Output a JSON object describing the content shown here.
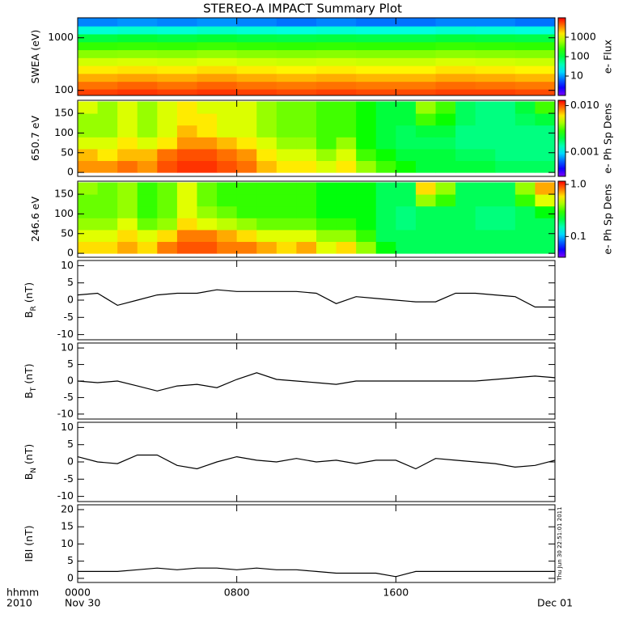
{
  "chart_data": [
    {
      "type": "heatmap",
      "title": "STEREO-A IMPACT Summary Plot",
      "ylabel": "SWEA (eV)",
      "ylog": true,
      "ylim": [
        80,
        2400
      ],
      "yticks": [
        100,
        1000
      ],
      "x": [
        1,
        3,
        5,
        7,
        9,
        11,
        13,
        15,
        17,
        19,
        21,
        23
      ],
      "y": [
        90,
        125,
        175,
        250,
        350,
        500,
        700,
        1000,
        1400,
        2000
      ],
      "z": [
        [
          6000,
          6500,
          6000,
          6500,
          6000,
          5500,
          6000,
          5500,
          5500,
          6000,
          6000,
          5500
        ],
        [
          4000,
          4500,
          4000,
          4500,
          4000,
          3800,
          4000,
          3800,
          3800,
          4200,
          4000,
          3800
        ],
        [
          2500,
          2700,
          2500,
          2800,
          2500,
          2300,
          2500,
          2300,
          2300,
          2600,
          2500,
          2300
        ],
        [
          1500,
          1600,
          1500,
          1700,
          1500,
          1400,
          1500,
          1400,
          1400,
          1600,
          1500,
          1400
        ],
        [
          900,
          950,
          900,
          1000,
          900,
          850,
          900,
          850,
          850,
          950,
          900,
          850
        ],
        [
          500,
          520,
          500,
          550,
          500,
          480,
          500,
          480,
          480,
          520,
          500,
          480
        ],
        [
          250,
          260,
          250,
          270,
          250,
          240,
          250,
          240,
          240,
          260,
          250,
          240
        ],
        [
          100,
          110,
          100,
          110,
          100,
          95,
          100,
          95,
          95,
          105,
          100,
          95
        ],
        [
          30,
          32,
          30,
          33,
          30,
          28,
          30,
          28,
          28,
          31,
          30,
          28
        ],
        [
          8,
          9,
          8,
          9,
          8,
          7,
          8,
          7,
          7,
          8,
          8,
          7
        ]
      ],
      "colorbar": {
        "label": "e- Flux",
        "log": true,
        "lim": [
          1,
          10000
        ],
        "ticks": [
          10,
          100,
          1000
        ]
      }
    },
    {
      "type": "heatmap",
      "ylabel": "650.7 eV",
      "ylim": [
        -10,
        183
      ],
      "yticks": [
        0,
        50,
        100,
        150
      ],
      "x": [
        0.5,
        1.5,
        2.5,
        3.5,
        4.5,
        5.5,
        6.5,
        7.5,
        8.5,
        9.5,
        10.5,
        11.5,
        12.5,
        13.5,
        14.5,
        15.5,
        16.5,
        17.5,
        18.5,
        19.5,
        20.5,
        21.5,
        22.5,
        23.5
      ],
      "y": [
        15,
        45,
        75,
        105,
        135,
        165
      ],
      "z": [
        [
          0.008,
          0.008,
          0.009,
          0.008,
          0.01,
          0.011,
          0.011,
          0.01,
          0.009,
          0.007,
          0.006,
          0.006,
          0.005,
          0.006,
          0.004,
          0.003,
          0.0025,
          0.002,
          0.002,
          0.002,
          0.002,
          0.0018,
          0.0018,
          0.0018
        ],
        [
          0.007,
          0.006,
          0.007,
          0.007,
          0.009,
          0.01,
          0.01,
          0.009,
          0.008,
          0.006,
          0.005,
          0.005,
          0.004,
          0.005,
          0.003,
          0.0025,
          0.002,
          0.002,
          0.002,
          0.0018,
          0.0018,
          0.0016,
          0.0016,
          0.0016
        ],
        [
          0.005,
          0.005,
          0.006,
          0.005,
          0.006,
          0.008,
          0.008,
          0.007,
          0.006,
          0.005,
          0.004,
          0.004,
          0.003,
          0.004,
          0.0025,
          0.002,
          0.0018,
          0.0018,
          0.0018,
          0.0016,
          0.0016,
          0.0016,
          0.0016,
          0.0016
        ],
        [
          0.004,
          0.004,
          0.005,
          0.004,
          0.005,
          0.007,
          0.006,
          0.005,
          0.005,
          0.004,
          0.0035,
          0.0035,
          0.003,
          0.003,
          0.0025,
          0.002,
          0.0018,
          0.002,
          0.002,
          0.0016,
          0.0016,
          0.0016,
          0.0016,
          0.0016
        ],
        [
          0.004,
          0.004,
          0.005,
          0.004,
          0.005,
          0.006,
          0.006,
          0.005,
          0.005,
          0.004,
          0.0035,
          0.0035,
          0.003,
          0.003,
          0.0025,
          0.002,
          0.002,
          0.003,
          0.0025,
          0.0018,
          0.0016,
          0.0016,
          0.0018,
          0.002
        ],
        [
          0.005,
          0.004,
          0.005,
          0.004,
          0.005,
          0.006,
          0.005,
          0.005,
          0.005,
          0.004,
          0.0035,
          0.0035,
          0.003,
          0.003,
          0.0025,
          0.002,
          0.002,
          0.004,
          0.003,
          0.0018,
          0.0016,
          0.0016,
          0.002,
          0.003
        ]
      ],
      "colorbar": {
        "label": "e- Ph Sp Dens",
        "log": true,
        "lim": [
          0.0003,
          0.013
        ],
        "ticks": [
          {
            "value": 0.01,
            "label": "0.010"
          },
          0.001
        ]
      }
    },
    {
      "type": "heatmap",
      "ylabel": "246.6 eV",
      "ylim": [
        -10,
        183
      ],
      "yticks": [
        0,
        50,
        100,
        150
      ],
      "x": [
        0.5,
        1.5,
        2.5,
        3.5,
        4.5,
        5.5,
        6.5,
        7.5,
        8.5,
        9.5,
        10.5,
        11.5,
        12.5,
        13.5,
        14.5,
        15.5,
        16.5,
        17.5,
        18.5,
        19.5,
        20.5,
        21.5,
        22.5,
        23.5
      ],
      "y": [
        15,
        45,
        75,
        105,
        135,
        165
      ],
      "z": [
        [
          0.6,
          0.6,
          0.7,
          0.6,
          0.8,
          0.9,
          0.9,
          0.8,
          0.8,
          0.7,
          0.6,
          0.7,
          0.5,
          0.6,
          0.4,
          0.25,
          0.2,
          0.2,
          0.2,
          0.2,
          0.2,
          0.2,
          0.2,
          0.2
        ],
        [
          0.5,
          0.5,
          0.6,
          0.5,
          0.6,
          0.8,
          0.8,
          0.7,
          0.6,
          0.5,
          0.5,
          0.5,
          0.4,
          0.4,
          0.3,
          0.2,
          0.2,
          0.2,
          0.2,
          0.2,
          0.2,
          0.2,
          0.2,
          0.2
        ],
        [
          0.4,
          0.4,
          0.5,
          0.35,
          0.4,
          0.6,
          0.5,
          0.45,
          0.4,
          0.35,
          0.35,
          0.35,
          0.3,
          0.3,
          0.25,
          0.2,
          0.18,
          0.2,
          0.2,
          0.2,
          0.18,
          0.18,
          0.2,
          0.2
        ],
        [
          0.35,
          0.35,
          0.4,
          0.3,
          0.35,
          0.5,
          0.4,
          0.35,
          0.3,
          0.3,
          0.3,
          0.3,
          0.25,
          0.25,
          0.25,
          0.2,
          0.18,
          0.2,
          0.2,
          0.2,
          0.18,
          0.18,
          0.2,
          0.25
        ],
        [
          0.35,
          0.35,
          0.4,
          0.3,
          0.35,
          0.5,
          0.35,
          0.3,
          0.3,
          0.3,
          0.3,
          0.3,
          0.25,
          0.25,
          0.25,
          0.2,
          0.2,
          0.4,
          0.3,
          0.2,
          0.2,
          0.2,
          0.3,
          0.5
        ],
        [
          0.4,
          0.35,
          0.4,
          0.3,
          0.35,
          0.5,
          0.35,
          0.3,
          0.3,
          0.3,
          0.3,
          0.3,
          0.25,
          0.25,
          0.25,
          0.2,
          0.2,
          0.6,
          0.4,
          0.2,
          0.2,
          0.2,
          0.4,
          0.7
        ]
      ],
      "colorbar": {
        "label": "e- Ph Sp Dens",
        "log": true,
        "lim": [
          0.04,
          1.15
        ],
        "ticks": [
          {
            "value": 1,
            "label": "1.0"
          },
          0.1
        ]
      }
    },
    {
      "type": "line",
      "ylabel_parts": [
        "B",
        "R",
        " (nT)"
      ],
      "ylim": [
        -11.5,
        11.5
      ],
      "yticks": [
        -10,
        -5,
        0,
        5,
        10
      ],
      "color": "#000000",
      "x": [
        0,
        1,
        2,
        3,
        4,
        5,
        6,
        7,
        8,
        9,
        10,
        11,
        12,
        13,
        14,
        15,
        16,
        17,
        18,
        19,
        20,
        21,
        22,
        23,
        24
      ],
      "values": [
        1.5,
        2,
        -1.5,
        0,
        1.5,
        2,
        2,
        3,
        2.5,
        2.5,
        2.5,
        2.5,
        2,
        -1,
        1,
        0.5,
        0,
        -0.5,
        -0.5,
        2,
        2,
        1.5,
        1,
        -2,
        -2
      ]
    },
    {
      "type": "line",
      "ylabel_parts": [
        "B",
        "T",
        " (nT)"
      ],
      "ylim": [
        -11.5,
        11.5
      ],
      "yticks": [
        -10,
        -5,
        0,
        5,
        10
      ],
      "color": "#000000",
      "x": [
        0,
        1,
        2,
        3,
        4,
        5,
        6,
        7,
        8,
        9,
        10,
        11,
        12,
        13,
        14,
        15,
        16,
        17,
        18,
        19,
        20,
        21,
        22,
        23,
        24
      ],
      "values": [
        0,
        -0.5,
        0,
        -1.5,
        -3,
        -1.5,
        -1,
        -2,
        0.5,
        2.5,
        0.5,
        0,
        -0.5,
        -1,
        0,
        0,
        0,
        0,
        0,
        0,
        0,
        0.5,
        1,
        1.5,
        1
      ]
    },
    {
      "type": "line",
      "ylabel_parts": [
        "B",
        "N",
        " (nT)"
      ],
      "ylim": [
        -11.5,
        11.5
      ],
      "yticks": [
        -10,
        -5,
        0,
        5,
        10
      ],
      "color": "#000000",
      "x": [
        0,
        1,
        2,
        3,
        4,
        5,
        6,
        7,
        8,
        9,
        10,
        11,
        12,
        13,
        14,
        15,
        16,
        17,
        18,
        19,
        20,
        21,
        22,
        23,
        24
      ],
      "values": [
        1.5,
        0,
        -0.5,
        2,
        2,
        -1,
        -2,
        0,
        1.5,
        0.5,
        0,
        1,
        0,
        0.5,
        -0.5,
        0.5,
        0.5,
        -2,
        1,
        0.5,
        0,
        -0.5,
        -1.5,
        -1,
        0.5
      ]
    },
    {
      "type": "line",
      "ylabel_parts": [
        "IBI",
        " (nT)"
      ],
      "ylim": [
        -1.2,
        21.4
      ],
      "yticks": [
        0,
        5,
        10,
        15,
        20
      ],
      "color": "#000000",
      "x": [
        0,
        1,
        2,
        3,
        4,
        5,
        6,
        7,
        8,
        9,
        10,
        11,
        12,
        13,
        14,
        15,
        16,
        17,
        18,
        19,
        20,
        21,
        22,
        23,
        24
      ],
      "values": [
        2,
        2,
        2,
        2.5,
        3,
        2.5,
        3,
        3,
        2.5,
        3,
        2.5,
        2.5,
        2,
        1.5,
        1.5,
        1.5,
        0.5,
        2,
        2,
        2,
        2,
        2,
        2,
        2,
        2
      ],
      "xlim": [
        0,
        24
      ],
      "xticks": [
        {
          "value": 0,
          "label": "0000"
        },
        {
          "value": 8,
          "label": "0800"
        },
        {
          "value": 16,
          "label": "1600"
        }
      ],
      "date_ticks": [
        {
          "value": 0,
          "label": "Nov 30"
        },
        {
          "value": 24,
          "label": "Dec 01"
        }
      ],
      "x_axis_labels": [
        "hhmm",
        "2010"
      ],
      "annotation": "Thu Jun 30 22:51:01 2011"
    }
  ]
}
